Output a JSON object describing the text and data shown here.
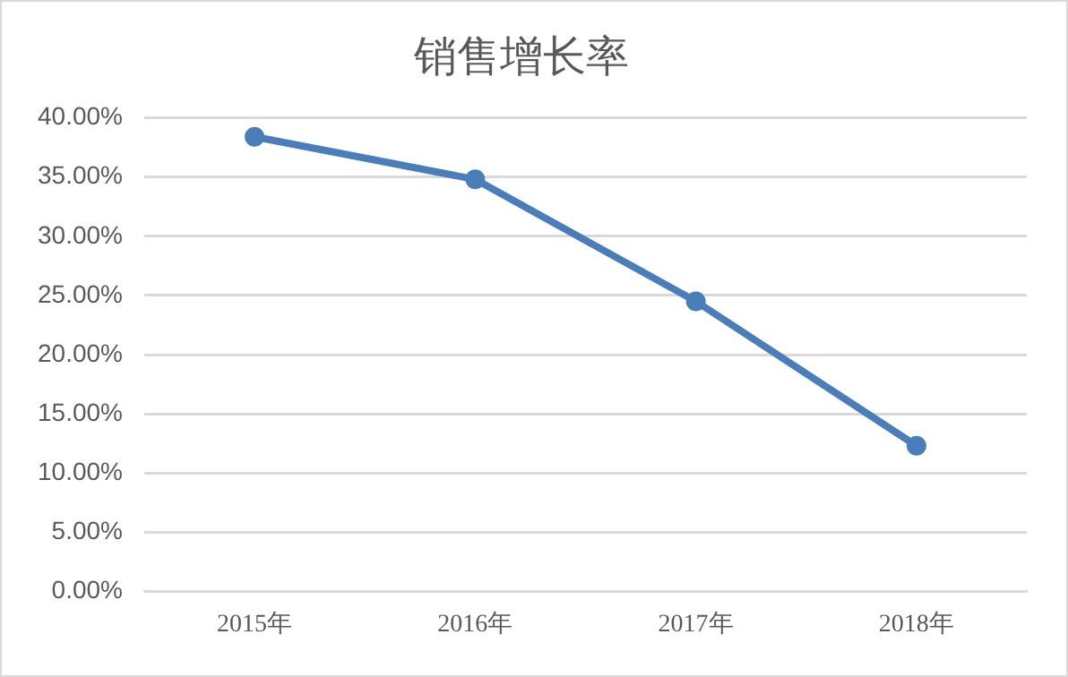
{
  "chart_data": {
    "type": "line",
    "title": "销售增长率",
    "categories": [
      "2015年",
      "2016年",
      "2017年",
      "2018年"
    ],
    "series": [
      {
        "color": "#4a7ebb",
        "values": [
          38.4,
          34.8,
          24.5,
          12.3
        ]
      }
    ],
    "ylim": [
      0,
      40
    ],
    "yticks": [
      {
        "value": 0,
        "label": "0.00%"
      },
      {
        "value": 5,
        "label": "5.00%"
      },
      {
        "value": 10,
        "label": "10.00%"
      },
      {
        "value": 15,
        "label": "15.00%"
      },
      {
        "value": 20,
        "label": "20.00%"
      },
      {
        "value": 25,
        "label": "25.00%"
      },
      {
        "value": 30,
        "label": "30.00%"
      },
      {
        "value": 35,
        "label": "35.00%"
      },
      {
        "value": 40,
        "label": "40.00%"
      }
    ],
    "grid": "y",
    "legend": false,
    "marker": "circle",
    "line_style": "solid"
  }
}
